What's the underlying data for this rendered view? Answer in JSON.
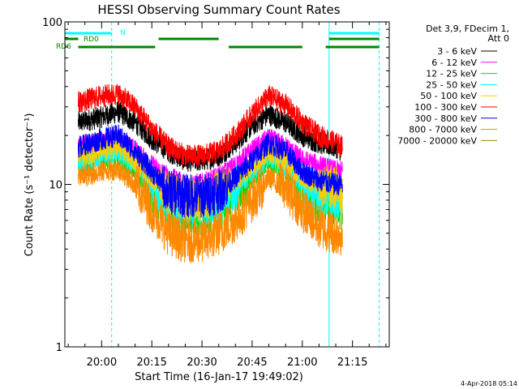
{
  "chart_data": {
    "type": "line",
    "title": "HESSI Observing Summary Count Rates",
    "xlabel": "Start Time (16-Jan-17 19:49:02)",
    "ylabel": "Count Rate (s⁻¹ detector⁻¹)",
    "y_scale": "log",
    "ylim": [
      1,
      100
    ],
    "xlim": [
      "19:49",
      "21:26"
    ],
    "x_tick_labels": [
      "20:00",
      "20:15",
      "20:30",
      "20:45",
      "21:00",
      "21:15"
    ],
    "y_tick_labels": [
      "1",
      "10",
      "100"
    ],
    "legend_title": [
      "Det 3,9, FDecim 1,",
      "Att 0"
    ],
    "legend_placement": "right-outside",
    "series": [
      {
        "name": "3 - 6 keV",
        "color": "#000000",
        "x": [
          "19:53",
          "20:00",
          "20:05",
          "20:10",
          "20:15",
          "20:20",
          "20:25",
          "20:30",
          "20:35",
          "20:40",
          "20:45",
          "20:50",
          "20:55",
          "21:00",
          "21:05",
          "21:10",
          "21:12"
        ],
        "y": [
          24,
          26,
          28,
          24,
          19,
          16,
          14,
          14,
          15,
          18,
          23,
          27,
          24,
          20,
          18,
          17,
          16
        ]
      },
      {
        "name": "6 - 12 keV",
        "color": "#ff00ff",
        "x": [
          "19:53",
          "20:00",
          "20:05",
          "20:10",
          "20:15",
          "20:20",
          "20:25",
          "20:30",
          "20:35",
          "20:40",
          "20:45",
          "20:50",
          "20:55",
          "21:00",
          "21:05",
          "21:10",
          "21:12"
        ],
        "y": [
          17,
          18,
          19,
          16,
          13,
          11,
          10,
          10,
          11,
          13,
          16,
          19,
          17,
          14,
          13,
          12,
          12
        ]
      },
      {
        "name": "12 - 25 keV",
        "color": "#00dd00",
        "x": [
          "19:53",
          "20:00",
          "20:05",
          "20:10",
          "20:15",
          "20:20",
          "20:25",
          "20:30",
          "20:35",
          "20:40",
          "20:45",
          "20:50",
          "20:55",
          "21:00",
          "21:05",
          "21:10",
          "21:12"
        ],
        "y": [
          13,
          14,
          15,
          12,
          9,
          7,
          6.5,
          6.5,
          7,
          8.5,
          11,
          14,
          12,
          9,
          8,
          7.5,
          7
        ]
      },
      {
        "name": "25 - 50 keV",
        "color": "#00ffff",
        "x": [
          "19:53",
          "20:00",
          "20:05",
          "20:10",
          "20:15",
          "20:20",
          "20:25",
          "20:30",
          "20:35",
          "20:40",
          "20:45",
          "20:50",
          "20:55",
          "21:00",
          "21:05",
          "21:10",
          "21:12"
        ],
        "y": [
          14,
          15,
          16,
          13,
          10,
          8,
          7.5,
          7.5,
          8,
          9.5,
          12,
          15,
          13,
          10,
          9,
          8.5,
          8
        ]
      },
      {
        "name": "50 - 100 keV",
        "color": "#ffcc00",
        "x": [
          "19:53",
          "20:00",
          "20:05",
          "20:10",
          "20:15",
          "20:20",
          "20:25",
          "20:30",
          "20:35",
          "20:40",
          "20:45",
          "20:50",
          "20:55",
          "21:00",
          "21:05",
          "21:10",
          "21:12"
        ],
        "y": [
          15,
          16,
          17,
          14,
          11,
          9,
          8,
          8,
          9,
          10.5,
          13,
          16,
          14,
          11,
          10,
          9.5,
          9
        ]
      },
      {
        "name": "100 - 300 keV",
        "color": "#ff0000",
        "x": [
          "19:53",
          "20:00",
          "20:05",
          "20:10",
          "20:15",
          "20:20",
          "20:25",
          "20:30",
          "20:35",
          "20:40",
          "20:45",
          "20:50",
          "20:55",
          "21:00",
          "21:05",
          "21:10",
          "21:12"
        ],
        "y": [
          32,
          35,
          36,
          30,
          22,
          17,
          15,
          15,
          16,
          20,
          27,
          35,
          31,
          24,
          20,
          18,
          17
        ]
      },
      {
        "name": "300 - 800 keV",
        "color": "#0000ff",
        "x": [
          "19:53",
          "20:00",
          "20:05",
          "20:10",
          "20:15",
          "20:20",
          "20:25",
          "20:30",
          "20:35",
          "20:40",
          "20:45",
          "20:50",
          "20:55",
          "21:00",
          "21:05",
          "21:10",
          "21:12"
        ],
        "y": [
          17,
          19,
          20,
          16,
          12,
          9,
          8.5,
          8.5,
          9,
          11,
          14,
          18,
          16,
          12,
          10.5,
          10,
          10
        ]
      },
      {
        "name": "800 - 7000 keV",
        "color": "#ff8800",
        "x": [
          "19:53",
          "20:00",
          "20:05",
          "20:10",
          "20:15",
          "20:20",
          "20:25",
          "20:30",
          "20:35",
          "20:40",
          "20:45",
          "20:50",
          "20:55",
          "21:00",
          "21:05",
          "21:10",
          "21:12"
        ],
        "y": [
          11,
          12,
          12.5,
          10,
          7,
          5,
          4.5,
          4.5,
          5,
          6,
          8,
          11,
          9.5,
          7,
          5.5,
          5,
          5
        ]
      },
      {
        "name": "7000 - 20000 keV",
        "color": "#888800",
        "x": [
          "19:53",
          "21:12"
        ],
        "y": [
          1,
          1
        ]
      }
    ],
    "flags": [
      {
        "name": "N",
        "color": "#00ffff",
        "segments": [
          [
            "19:49",
            "20:03"
          ],
          [
            "21:08",
            "21:23"
          ]
        ]
      },
      {
        "name": "RD0",
        "color": "#008800",
        "segments": [
          [
            "19:49",
            "19:53"
          ],
          [
            "20:17",
            "20:35"
          ],
          [
            "21:08",
            "21:23"
          ]
        ]
      },
      {
        "name": "RD6",
        "color": "#008800",
        "segments": [
          [
            "19:53",
            "20:16"
          ],
          [
            "20:38",
            "21:00"
          ],
          [
            "21:07",
            "21:23"
          ]
        ]
      }
    ],
    "night_boundaries": [
      {
        "time": "19:49",
        "style": "solid",
        "color": "#00ffff"
      },
      {
        "time": "20:03",
        "style": "dashed",
        "color": "#00ffff"
      },
      {
        "time": "21:08",
        "style": "solid",
        "color": "#00ffff"
      },
      {
        "time": "21:23",
        "style": "dashed",
        "color": "#00ffff"
      }
    ]
  },
  "footer": {
    "date_stamp": "4-Apr-2018 05:14"
  }
}
